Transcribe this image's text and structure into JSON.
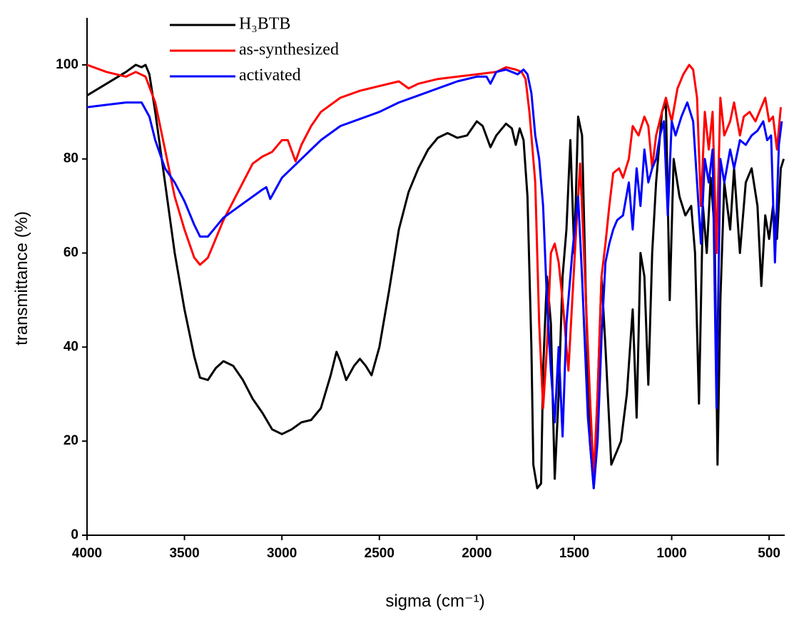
{
  "chart_data": {
    "type": "line",
    "xlabel": "sigma (cm⁻¹)",
    "ylabel": "transmittance (%)",
    "xlim": [
      4000,
      420
    ],
    "ylim": [
      0,
      110
    ],
    "xticks": [
      4000,
      3500,
      3000,
      2500,
      2000,
      1500,
      1000,
      500
    ],
    "yticks": [
      0,
      20,
      40,
      60,
      80,
      100
    ],
    "series": [
      {
        "name": "H₃BTB",
        "color": "#000000",
        "x": [
          4000,
          3900,
          3800,
          3750,
          3720,
          3700,
          3680,
          3650,
          3600,
          3550,
          3500,
          3450,
          3420,
          3380,
          3340,
          3300,
          3250,
          3200,
          3150,
          3100,
          3050,
          3000,
          2950,
          2900,
          2850,
          2800,
          2750,
          2720,
          2700,
          2670,
          2630,
          2600,
          2570,
          2540,
          2500,
          2450,
          2400,
          2350,
          2300,
          2250,
          2200,
          2150,
          2100,
          2050,
          2000,
          1970,
          1930,
          1900,
          1850,
          1820,
          1800,
          1780,
          1760,
          1740,
          1720,
          1710,
          1690,
          1670,
          1660,
          1640,
          1620,
          1600,
          1580,
          1560,
          1540,
          1520,
          1500,
          1480,
          1460,
          1440,
          1420,
          1400,
          1380,
          1360,
          1340,
          1310,
          1280,
          1260,
          1230,
          1200,
          1180,
          1160,
          1140,
          1120,
          1100,
          1080,
          1050,
          1030,
          1010,
          990,
          960,
          930,
          900,
          880,
          860,
          840,
          820,
          800,
          780,
          765,
          750,
          730,
          700,
          680,
          650,
          620,
          590,
          560,
          540,
          520,
          500,
          480,
          460,
          440,
          425
        ],
        "values": [
          93.5,
          96,
          98.5,
          100,
          99.5,
          100,
          98,
          90,
          75,
          60,
          48,
          38,
          33.5,
          33,
          35.5,
          37,
          36,
          33,
          29,
          26,
          22.5,
          21.5,
          22.5,
          24,
          24.5,
          27,
          34,
          39,
          37,
          33,
          36,
          37.5,
          36,
          34,
          40,
          52,
          65,
          73,
          78,
          82,
          84.5,
          85.5,
          84.5,
          85,
          88,
          87,
          82.5,
          85,
          87.5,
          86.5,
          83,
          86.5,
          84,
          72,
          40,
          15,
          10,
          11,
          35,
          55,
          45,
          12,
          30,
          55,
          65,
          84,
          60,
          89,
          85,
          50,
          20,
          10,
          30,
          55,
          40,
          15,
          18,
          20,
          30,
          48,
          25,
          60,
          55,
          32,
          60,
          75,
          90,
          92,
          50,
          80,
          72,
          68,
          70,
          60,
          28,
          70,
          60,
          76,
          65,
          15,
          50,
          75,
          65,
          78,
          60,
          75,
          78,
          70,
          53,
          68,
          63,
          70,
          63,
          78,
          80
        ]
      },
      {
        "name": "as-synthesized",
        "color": "#ff0000",
        "x": [
          4000,
          3900,
          3800,
          3750,
          3700,
          3650,
          3600,
          3550,
          3500,
          3450,
          3420,
          3380,
          3350,
          3300,
          3250,
          3200,
          3150,
          3100,
          3050,
          3000,
          2970,
          2930,
          2900,
          2850,
          2800,
          2700,
          2600,
          2500,
          2400,
          2350,
          2300,
          2200,
          2000,
          1900,
          1850,
          1800,
          1770,
          1750,
          1730,
          1700,
          1680,
          1660,
          1640,
          1620,
          1600,
          1580,
          1560,
          1530,
          1510,
          1490,
          1470,
          1450,
          1420,
          1400,
          1380,
          1360,
          1340,
          1320,
          1300,
          1270,
          1250,
          1220,
          1200,
          1170,
          1140,
          1120,
          1100,
          1080,
          1050,
          1030,
          1000,
          970,
          940,
          910,
          890,
          870,
          850,
          830,
          810,
          790,
          770,
          750,
          730,
          700,
          680,
          650,
          630,
          600,
          570,
          540,
          520,
          500,
          480,
          460,
          440
        ],
        "values": [
          100,
          98.5,
          97.5,
          98.5,
          97.5,
          92,
          82,
          72,
          65,
          59,
          57.5,
          59,
          62,
          67,
          71,
          75,
          79,
          80.5,
          81.5,
          84,
          84,
          79.5,
          83,
          87,
          90,
          93,
          94.5,
          95.5,
          96.5,
          95,
          96,
          97,
          98,
          98.5,
          99.5,
          99,
          98.5,
          97,
          90,
          75,
          45,
          27,
          40,
          60,
          62,
          58,
          50,
          35,
          50,
          65,
          79,
          60,
          30,
          12.5,
          30,
          55,
          62,
          70,
          77,
          78,
          76,
          80,
          87,
          85,
          89,
          87,
          78,
          85,
          90,
          93,
          88,
          95,
          98,
          100,
          99,
          93,
          70,
          90,
          82,
          90,
          60,
          93,
          85,
          88,
          92,
          85,
          89,
          90,
          88,
          91,
          93,
          88,
          89,
          82,
          91
        ]
      },
      {
        "name": "activated",
        "color": "#0000ff",
        "x": [
          4000,
          3900,
          3800,
          3720,
          3680,
          3650,
          3600,
          3550,
          3500,
          3450,
          3420,
          3380,
          3350,
          3300,
          3250,
          3200,
          3100,
          3080,
          3060,
          3040,
          3000,
          2950,
          2900,
          2850,
          2800,
          2700,
          2600,
          2500,
          2400,
          2300,
          2200,
          2100,
          2000,
          1950,
          1930,
          1900,
          1850,
          1820,
          1790,
          1760,
          1740,
          1720,
          1700,
          1680,
          1660,
          1640,
          1620,
          1600,
          1580,
          1560,
          1540,
          1510,
          1480,
          1460,
          1430,
          1400,
          1380,
          1360,
          1340,
          1320,
          1300,
          1280,
          1250,
          1220,
          1200,
          1180,
          1160,
          1140,
          1120,
          1100,
          1080,
          1060,
          1040,
          1020,
          1000,
          980,
          950,
          920,
          890,
          870,
          850,
          830,
          810,
          790,
          770,
          750,
          730,
          700,
          680,
          650,
          620,
          590,
          560,
          530,
          510,
          490,
          470,
          450,
          435
        ],
        "values": [
          91,
          91.5,
          92,
          92,
          89,
          84,
          78,
          75,
          71,
          66,
          63.5,
          63.5,
          65,
          67.5,
          69,
          70.5,
          73.5,
          74,
          71.5,
          73,
          76,
          78,
          80,
          82,
          84,
          87,
          88.5,
          90,
          92,
          93.5,
          95,
          96.5,
          97.5,
          97.5,
          96,
          98.5,
          99,
          98.5,
          98,
          99,
          98,
          94,
          85,
          80,
          70,
          50,
          35,
          24,
          40,
          21,
          45,
          60,
          72,
          55,
          25,
          10,
          20,
          42,
          58,
          62,
          65,
          67,
          68,
          75,
          65,
          78,
          70,
          82,
          75,
          78,
          80,
          85,
          88,
          68,
          88,
          85,
          89,
          92,
          88,
          75,
          62,
          80,
          75,
          82,
          27,
          80,
          75,
          82,
          78,
          84,
          83,
          85,
          86,
          88,
          84,
          85,
          58,
          83,
          88
        ]
      }
    ]
  }
}
